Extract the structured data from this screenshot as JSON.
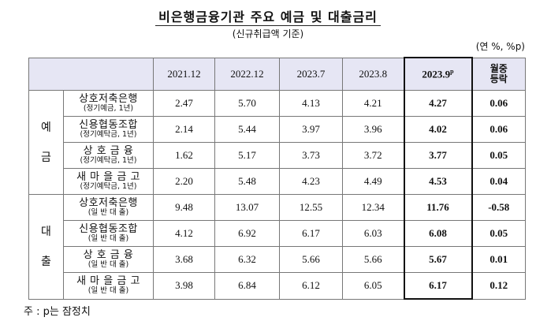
{
  "title": "비은행금융기관 주요 예금 및 대출금리",
  "subtitle": "(신규취급액 기준)",
  "unit": "(연 %, %p)",
  "header": {
    "cols": [
      "2021.12",
      "2022.12",
      "2023.7",
      "2023.8"
    ],
    "highlight": "2023.9",
    "highlight_sup": "p",
    "change_line1": "월중",
    "change_line2": "등락"
  },
  "deposit": {
    "group_char1": "예",
    "group_char2": "금",
    "rows": [
      {
        "name": "상호저축은행",
        "sub": "(정기예금, 1년)",
        "v": [
          "2.47",
          "5.70",
          "4.13",
          "4.21"
        ],
        "cur": "4.27",
        "chg": "0.06"
      },
      {
        "name": "신용협동조합",
        "sub": "(정기예탁금, 1년)",
        "v": [
          "2.14",
          "5.44",
          "3.97",
          "3.96"
        ],
        "cur": "4.02",
        "chg": "0.06"
      },
      {
        "name": "상 호 금 융",
        "sub": "(정기예탁금, 1년)",
        "v": [
          "1.62",
          "5.17",
          "3.73",
          "3.72"
        ],
        "cur": "3.77",
        "chg": "0.05"
      },
      {
        "name": "새 마 을 금 고",
        "sub": "(정기예탁금, 1년)",
        "v": [
          "2.20",
          "5.48",
          "4.23",
          "4.49"
        ],
        "cur": "4.53",
        "chg": "0.04"
      }
    ]
  },
  "loan": {
    "group_char1": "대",
    "group_char2": "출",
    "rows": [
      {
        "name": "상호저축은행",
        "sub": "(일 반 대 출)",
        "v": [
          "9.48",
          "13.07",
          "12.55",
          "12.34"
        ],
        "cur": "11.76",
        "chg": "-0.58"
      },
      {
        "name": "신용협동조합",
        "sub": "(일 반 대 출)",
        "v": [
          "4.12",
          "6.92",
          "6.17",
          "6.03"
        ],
        "cur": "6.08",
        "chg": "0.05"
      },
      {
        "name": "상 호 금 융",
        "sub": "(일 반 대 출)",
        "v": [
          "3.68",
          "6.32",
          "5.66",
          "5.66"
        ],
        "cur": "5.67",
        "chg": "0.01"
      },
      {
        "name": "새 마 을 금 고",
        "sub": "(일 반 대 출)",
        "v": [
          "3.98",
          "6.84",
          "6.12",
          "6.05"
        ],
        "cur": "6.17",
        "chg": "0.12"
      }
    ]
  },
  "footnote": "주 : p는 잠정치"
}
